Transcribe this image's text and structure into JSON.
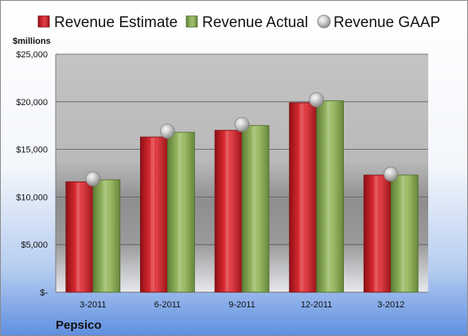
{
  "chart_data": {
    "type": "bar",
    "categories": [
      "3-2011",
      "6-2011",
      "9-2011",
      "12-2011",
      "3-2012"
    ],
    "series": [
      {
        "name": "Revenue Estimate",
        "values": [
          11600,
          16300,
          17000,
          19900,
          12300
        ],
        "color": "#c9202a",
        "kind": "bar"
      },
      {
        "name": "Revenue Actual",
        "values": [
          11800,
          16800,
          17500,
          20100,
          12300
        ],
        "color": "#8fb15a",
        "kind": "bar"
      },
      {
        "name": "Revenue GAAP",
        "values": [
          11900,
          16900,
          17600,
          20200,
          12400
        ],
        "color": "#b8b8b8",
        "kind": "marker"
      }
    ],
    "ylabel": "$millions",
    "ylim": [
      0,
      25000
    ],
    "yticks": [
      0,
      5000,
      10000,
      15000,
      20000,
      25000
    ],
    "ytick_labels": [
      "$-",
      "$5,000",
      "$10,000",
      "$15,000",
      "$20,000",
      "$25,000"
    ],
    "grid": true,
    "legend": "top",
    "company": "Pepsico"
  }
}
